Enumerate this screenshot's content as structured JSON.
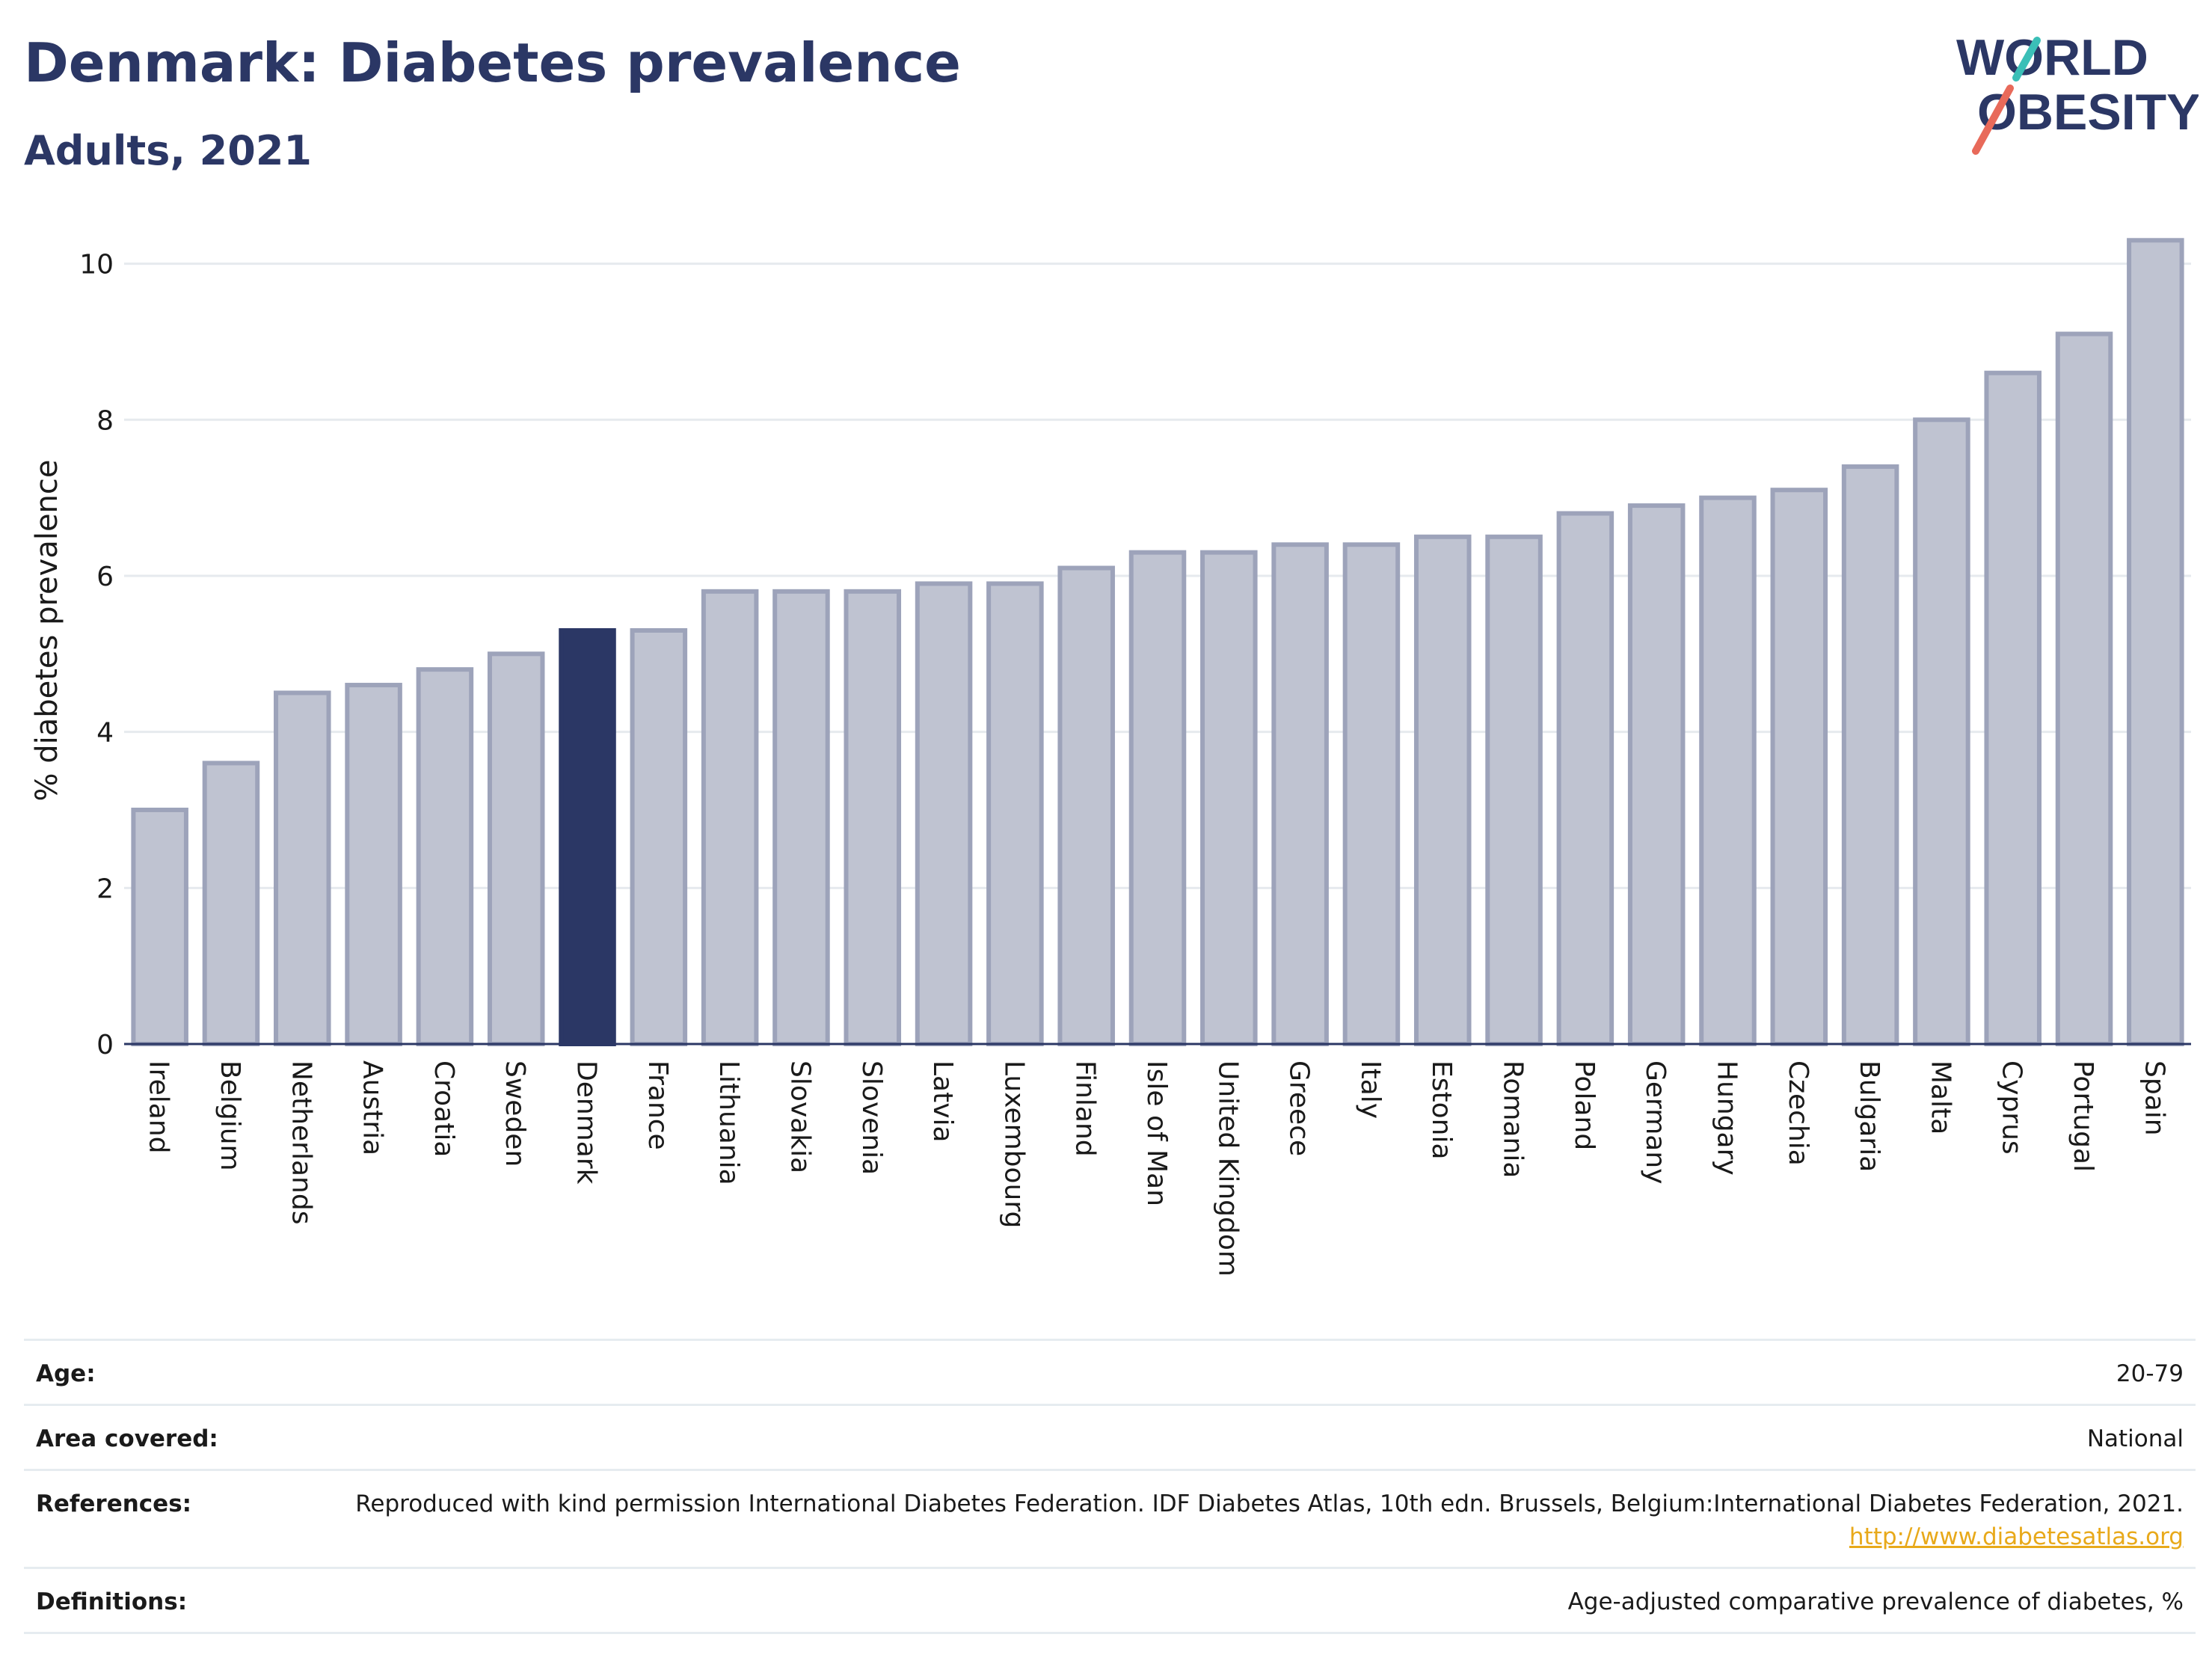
{
  "header": {
    "title": "Denmark: Diabetes prevalence",
    "subtitle": "Adults, 2021",
    "logo_line1": "WORLD",
    "logo_line2": "OBESITY"
  },
  "chart_data": {
    "type": "bar",
    "title": "Denmark: Diabetes prevalence",
    "subtitle": "Adults, 2021",
    "ylabel": "% diabetes prevalence",
    "xlabel": "",
    "ylim": [
      0,
      10.6
    ],
    "yticks": [
      0,
      2,
      4,
      6,
      8,
      10
    ],
    "grid": true,
    "highlight": "Denmark",
    "colors": {
      "bar": "#bfc3d1",
      "bar_border": "#9da3ba",
      "highlight": "#2b3765"
    },
    "categories": [
      "Ireland",
      "Belgium",
      "Netherlands",
      "Austria",
      "Croatia",
      "Sweden",
      "Denmark",
      "France",
      "Lithuania",
      "Slovakia",
      "Slovenia",
      "Latvia",
      "Luxembourg",
      "Finland",
      "Isle of Man",
      "United Kingdom",
      "Greece",
      "Italy",
      "Estonia",
      "Romania",
      "Poland",
      "Germany",
      "Hungary",
      "Czechia",
      "Bulgaria",
      "Malta",
      "Cyprus",
      "Portugal",
      "Spain"
    ],
    "values": [
      3.0,
      3.6,
      4.5,
      4.6,
      4.8,
      5.0,
      5.3,
      5.3,
      5.8,
      5.8,
      5.8,
      5.9,
      5.9,
      6.1,
      6.3,
      6.3,
      6.4,
      6.4,
      6.5,
      6.5,
      6.8,
      6.9,
      7.0,
      7.1,
      7.4,
      8.0,
      8.6,
      9.1,
      10.3
    ]
  },
  "meta": {
    "age_label": "Age:",
    "age_value": "20-79",
    "area_label": "Area covered:",
    "area_value": "National",
    "references_label": "References:",
    "references_text": "Reproduced with kind permission International Diabetes Federation.  IDF Diabetes Atlas, 10th edn. Brussels, Belgium:International Diabetes Federation, 2021. ",
    "references_link": "http://www.diabetesatlas.org",
    "definitions_label": "Definitions:",
    "definitions_value": "Age-adjusted comparative prevalence of diabetes, %"
  }
}
